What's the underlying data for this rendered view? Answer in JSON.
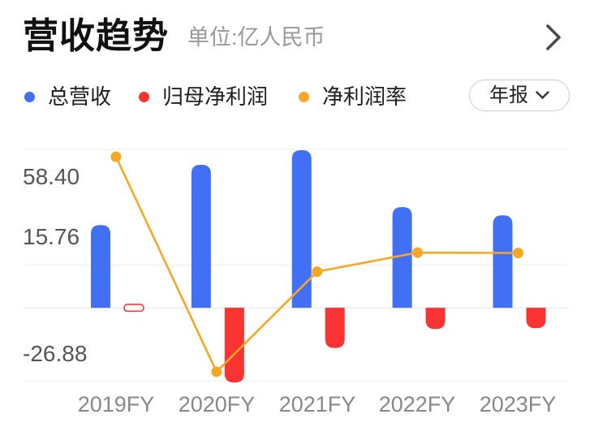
{
  "header": {
    "title": "营收趋势",
    "unit_label": "单位:亿人民币",
    "more_icon": "chevron-right"
  },
  "legend": {
    "items": [
      {
        "label": "总营收",
        "color": "#4170F4",
        "marker": "dot"
      },
      {
        "label": "归母净利润",
        "color": "#FA3333",
        "marker": "dot"
      },
      {
        "label": "净利润率",
        "color": "#F6A724",
        "marker": "dot"
      }
    ]
  },
  "period_selector": {
    "label": "年报",
    "icon": "chevron-down"
  },
  "colors": {
    "revenue_bar": "#4170F4",
    "profit_bar": "#FA3333",
    "margin_line": "#F6A724",
    "grid": "#F0F0F2",
    "zero_axis": "#E4E4E8",
    "ytick_text": "#555555",
    "xtick_text": "#888888"
  },
  "chart_data": {
    "type": "combo",
    "title": "营收趋势",
    "unit": "亿人民币",
    "categories": [
      "2019FY",
      "2020FY",
      "2021FY",
      "2022FY",
      "2023FY"
    ],
    "series": [
      {
        "name": "总营收",
        "kind": "bar",
        "color": "#4170F4",
        "values": [
          30.5,
          52.7,
          58.1,
          37.1,
          34.1
        ]
      },
      {
        "name": "归母净利润",
        "kind": "bar",
        "color": "#FA3333",
        "near_zero_style": "hollow-pill",
        "values": [
          0.9,
          -27.5,
          -14.8,
          -7.8,
          -7.5
        ]
      },
      {
        "name": "净利润率",
        "kind": "line",
        "color": "#F6A724",
        "axis": "right",
        "values": [
          3.0,
          -52.2,
          -26.5,
          -21.6,
          -21.7
        ]
      }
    ],
    "ylim": [
      -26.88,
      58.4
    ],
    "y2lim": [
      -54.5,
      4.9
    ],
    "yticks": [
      {
        "label": "58.40",
        "value": 58.4
      },
      {
        "label": "15.76",
        "value": 15.76
      },
      {
        "label": "-26.88",
        "value": -26.88
      }
    ],
    "grid": true,
    "legend_position": "top"
  }
}
